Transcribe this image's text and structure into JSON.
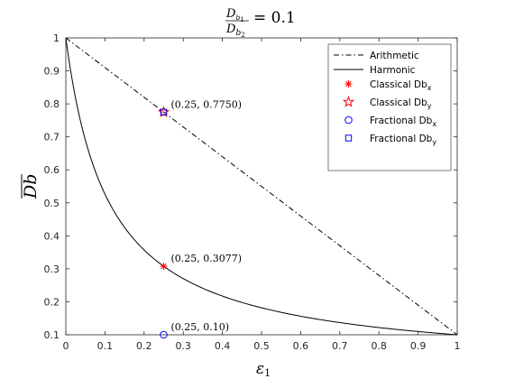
{
  "chart_data": {
    "type": "line",
    "title": {
      "prefix_num": "D",
      "num_sub": "b",
      "num_subsub": "1",
      "prefix_den": "D",
      "den_sub": "b",
      "den_subsub": "2",
      "suffix": "= 0.1"
    },
    "xlabel": {
      "symbol": "ε",
      "sub": "1"
    },
    "ylabel": "Db",
    "xlim": [
      0,
      1
    ],
    "ylim": [
      0.1,
      1
    ],
    "xticks": [
      0,
      0.1,
      0.2,
      0.3,
      0.4,
      0.5,
      0.6,
      0.7,
      0.8,
      0.9,
      1
    ],
    "xtick_labels": [
      "0",
      "0.1",
      "0.2",
      "0.3",
      "0.4",
      "0.5",
      "0.6",
      "0.7",
      "0.8",
      "0.9",
      "1"
    ],
    "yticks": [
      0.1,
      0.2,
      0.3,
      0.4,
      0.5,
      0.6,
      0.7,
      0.8,
      0.9,
      1
    ],
    "ytick_labels": [
      "0.1",
      "0.2",
      "0.3",
      "0.4",
      "0.5",
      "0.6",
      "0.7",
      "0.8",
      "0.9",
      "1"
    ],
    "grid": false,
    "legend_position": "top-right",
    "series": [
      {
        "name": "Arithmetic",
        "kind": "line",
        "style": "dashdot",
        "color": "#000000",
        "formula": "arithmetic"
      },
      {
        "name": "Harmonic",
        "kind": "line",
        "style": "solid",
        "color": "#000000",
        "formula": "harmonic"
      },
      {
        "name": "Classical Db",
        "sub": "x",
        "kind": "marker",
        "marker": "asterisk",
        "color": "#ff0000",
        "x": 0.25,
        "y": 0.3077
      },
      {
        "name": "Classical Db",
        "sub": "y",
        "kind": "marker",
        "marker": "star",
        "color": "#ff0000",
        "x": 0.25,
        "y": 0.775
      },
      {
        "name": "Fractional Db",
        "sub": "x",
        "kind": "marker",
        "marker": "circle",
        "color": "#0000ff",
        "x": 0.25,
        "y": 0.1
      },
      {
        "name": "Fractional Db",
        "sub": "y",
        "kind": "marker",
        "marker": "square",
        "color": "#0000ff",
        "x": 0.25,
        "y": 0.775
      }
    ],
    "annotations": [
      {
        "text": "(0.25, 0.7750)",
        "x": 0.25,
        "y": 0.775
      },
      {
        "text": "(0.25, 0.3077)",
        "x": 0.25,
        "y": 0.3077
      },
      {
        "text": "(0.25, 0.10)",
        "x": 0.25,
        "y": 0.1
      }
    ]
  }
}
